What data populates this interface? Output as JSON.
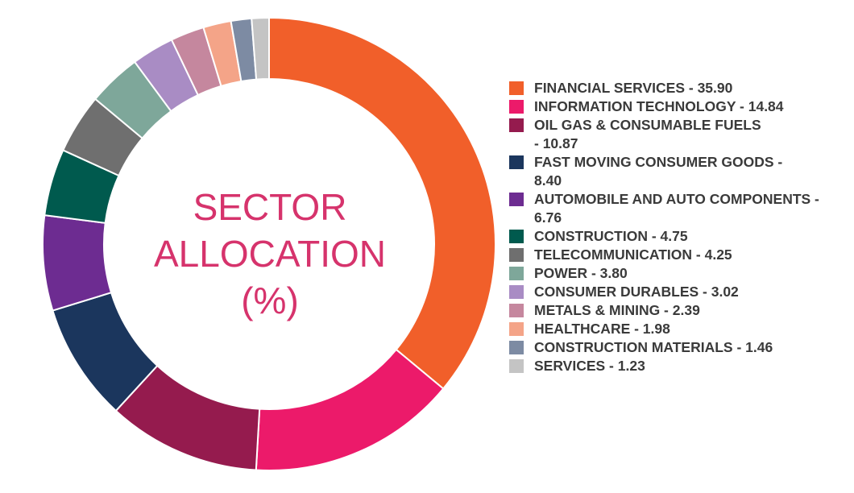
{
  "chart_data": {
    "type": "pie",
    "title": "SECTOR ALLOCATION (%)",
    "title_lines": [
      "SECTOR",
      "ALLOCATION",
      "(%)"
    ],
    "legend_position": "right",
    "slices": [
      {
        "label": "FINANCIAL SERVICES",
        "value": 35.9,
        "value_text": "35.90",
        "legend_text": "FINANCIAL SERVICES - 35.90",
        "color": "#f15f2a"
      },
      {
        "label": "INFORMATION TECHNOLOGY",
        "value": 14.84,
        "value_text": "14.84",
        "legend_text": "INFORMATION TECHNOLOGY - 14.84",
        "color": "#ec1a6a"
      },
      {
        "label": "OIL GAS & CONSUMABLE FUELS",
        "value": 10.87,
        "value_text": "10.87",
        "legend_text": "OIL GAS & CONSUMABLE FUELS\n- 10.87",
        "color": "#951b4e"
      },
      {
        "label": "FAST MOVING CONSUMER GOODS",
        "value": 8.4,
        "value_text": "8.40",
        "legend_text": "FAST MOVING CONSUMER GOODS -\n8.40",
        "color": "#1b365d"
      },
      {
        "label": "AUTOMOBILE AND AUTO COMPONENTS",
        "value": 6.76,
        "value_text": "6.76",
        "legend_text": "AUTOMOBILE AND AUTO COMPONENTS -\n6.76",
        "color": "#6d2c91"
      },
      {
        "label": "CONSTRUCTION",
        "value": 4.75,
        "value_text": "4.75",
        "legend_text": "CONSTRUCTION - 4.75",
        "color": "#005a4e"
      },
      {
        "label": "TELECOMMUNICATION",
        "value": 4.25,
        "value_text": "4.25",
        "legend_text": "TELECOMMUNICATION - 4.25",
        "color": "#6f6f6f"
      },
      {
        "label": "POWER",
        "value": 3.8,
        "value_text": "3.80",
        "legend_text": "POWER - 3.80",
        "color": "#7ea79a"
      },
      {
        "label": "CONSUMER DURABLES",
        "value": 3.02,
        "value_text": "3.02",
        "legend_text": "CONSUMER DURABLES - 3.02",
        "color": "#a98cc4"
      },
      {
        "label": "METALS & MINING",
        "value": 2.39,
        "value_text": "2.39",
        "legend_text": "METALS & MINING - 2.39",
        "color": "#c5879e"
      },
      {
        "label": "HEALTHCARE",
        "value": 1.98,
        "value_text": "1.98",
        "legend_text": "HEALTHCARE - 1.98",
        "color": "#f4a488"
      },
      {
        "label": "CONSTRUCTION MATERIALS",
        "value": 1.46,
        "value_text": "1.46",
        "legend_text": "CONSTRUCTION MATERIALS - 1.46",
        "color": "#7d8ba3"
      },
      {
        "label": "SERVICES",
        "value": 1.23,
        "value_text": "1.23",
        "legend_text": "SERVICES - 1.23",
        "color": "#c4c4c4"
      }
    ]
  }
}
